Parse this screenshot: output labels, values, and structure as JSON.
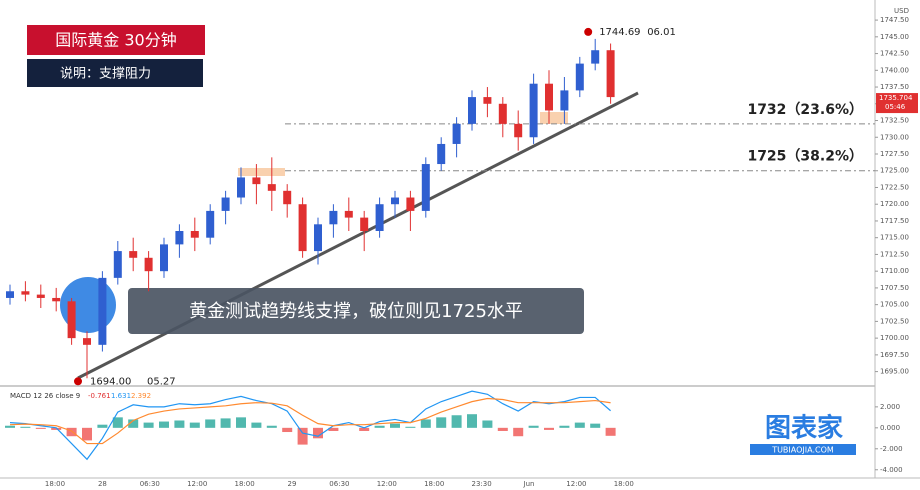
{
  "chart_data": {
    "type": "candlestick",
    "title": "国际黄金 30分钟",
    "subtitle": "说明：支撑阻力",
    "annotation": "黄金测试趋势线支撑，破位则见1725水平",
    "currency": "USD",
    "up_color": "#2f5fd0",
    "down_color": "#e03030",
    "open": [
      1706,
      1707,
      1706.5,
      1706,
      1705.5,
      1700,
      1699,
      1709,
      1713,
      1712,
      1710,
      1714,
      1716,
      1715,
      1719,
      1721,
      1724,
      1723,
      1722,
      1720,
      1713,
      1717,
      1719,
      1718,
      1716,
      1720,
      1721,
      1719,
      1726,
      1729,
      1732,
      1736,
      1735,
      1732,
      1730,
      1738,
      1734,
      1737,
      1741,
      1743
    ],
    "high": [
      1708,
      1708.5,
      1708,
      1707.5,
      1706,
      1701,
      1710,
      1714.5,
      1715,
      1713,
      1715,
      1717,
      1718,
      1720,
      1722,
      1725.5,
      1726,
      1727,
      1723,
      1721,
      1718,
      1720,
      1721,
      1719,
      1721,
      1722,
      1722,
      1727,
      1730,
      1733,
      1737,
      1737.5,
      1736,
      1734,
      1739.5,
      1740,
      1739,
      1742,
      1744.69,
      1744
    ],
    "low": [
      1705,
      1705.5,
      1704.5,
      1704,
      1699,
      1694,
      1698,
      1708,
      1710,
      1707,
      1709,
      1712,
      1713,
      1714,
      1717,
      1720,
      1720,
      1719,
      1718,
      1712,
      1711,
      1715,
      1716,
      1713,
      1715,
      1718,
      1716,
      1718,
      1725,
      1727,
      1731,
      1733,
      1730,
      1728,
      1729,
      1732,
      1732,
      1736,
      1740,
      1735
    ],
    "close": [
      1707,
      1706.5,
      1706,
      1705.5,
      1700,
      1699,
      1709,
      1713,
      1712,
      1710,
      1714,
      1716,
      1715,
      1719,
      1721,
      1724,
      1723,
      1722,
      1720,
      1713,
      1717,
      1719,
      1718,
      1716,
      1720,
      1721,
      1719,
      1726,
      1729,
      1732,
      1736,
      1735,
      1732,
      1730,
      1738,
      1734,
      1737,
      1741,
      1743,
      1736
    ],
    "time_labels": [
      "18:00",
      "28",
      "06:30",
      "12:00",
      "18:00",
      "29",
      "06:30",
      "12:00",
      "18:00",
      "23:30",
      "Jun",
      "12:00",
      "18:00"
    ],
    "ylim": [
      1693,
      1750.5
    ],
    "yticks": [
      {
        "value": 1695,
        "label": "1695.00"
      },
      {
        "value": 1697.5,
        "label": "1697.50"
      },
      {
        "value": 1700,
        "label": "1700.00"
      },
      {
        "value": 1702.5,
        "label": "1702.50"
      },
      {
        "value": 1705,
        "label": "1705.00"
      },
      {
        "value": 1707.5,
        "label": "1707.50"
      },
      {
        "value": 1710,
        "label": "1710.00"
      },
      {
        "value": 1712.5,
        "label": "1712.50"
      },
      {
        "value": 1715,
        "label": "1715.00"
      },
      {
        "value": 1717.5,
        "label": "1717.50"
      },
      {
        "value": 1720,
        "label": "1720.00"
      },
      {
        "value": 1722.5,
        "label": "1722.50"
      },
      {
        "value": 1725,
        "label": "1725.00"
      },
      {
        "value": 1727.5,
        "label": "1727.50"
      },
      {
        "value": 1730,
        "label": "1730.00"
      },
      {
        "value": 1732.5,
        "label": "1732.50"
      },
      {
        "value": 1735,
        "label": "1735.00"
      },
      {
        "value": 1737.5,
        "label": "1737.50"
      },
      {
        "value": 1740,
        "label": "1740.00"
      },
      {
        "value": 1742.5,
        "label": "1742.50"
      },
      {
        "value": 1745,
        "label": "1745.00"
      },
      {
        "value": 1747.5,
        "label": "1747.50"
      }
    ],
    "levels": [
      {
        "value": 1732,
        "label": "1732（23.6%）"
      },
      {
        "value": 1725,
        "label": "1725（38.2%）"
      }
    ],
    "last_price": {
      "value": 1735.704,
      "label": "1735.704",
      "time": "05:46"
    },
    "high_mark": {
      "value": 1744.69,
      "label": "1744.69",
      "date": "06.01"
    },
    "low_mark": {
      "value": 1694.0,
      "label": "1694.00",
      "date": "05.27"
    },
    "macd": {
      "title": "MACD 12 26 close 9",
      "hist_label": "-0.761",
      "macd_label": "1.631",
      "signal_label": "2.392",
      "hist": [
        0.2,
        0.1,
        -0.1,
        -0.2,
        -0.8,
        -1.2,
        0.3,
        1.0,
        0.8,
        0.5,
        0.6,
        0.7,
        0.5,
        0.8,
        0.9,
        1.0,
        0.5,
        0.2,
        -0.4,
        -1.6,
        -1.0,
        -0.3,
        0,
        -0.3,
        0.2,
        0.4,
        0.1,
        0.8,
        1.0,
        1.2,
        1.3,
        0.7,
        -0.3,
        -0.8,
        0.2,
        -0.2,
        0.2,
        0.5,
        0.4,
        -0.761
      ],
      "macd": [
        0.5,
        0.4,
        0.2,
        0,
        -1.5,
        -3,
        -1,
        1.5,
        2.2,
        2,
        2,
        2.3,
        2.2,
        2.3,
        2.7,
        3,
        2.6,
        2.3,
        1.6,
        -0.5,
        -0.8,
        0.2,
        0.5,
        0,
        0.6,
        0.8,
        0.5,
        1.8,
        2.5,
        3,
        3.5,
        3.2,
        2.3,
        1.6,
        2.5,
        2.3,
        2.5,
        2.9,
        2.9,
        1.631
      ],
      "signal": [
        0.3,
        0.35,
        0.3,
        0.2,
        -0.3,
        -1.5,
        -1.5,
        -0.5,
        0.7,
        1.3,
        1.6,
        1.8,
        1.9,
        2,
        2.1,
        2.3,
        2.4,
        2.35,
        2.1,
        1.2,
        0.4,
        0.2,
        0.3,
        0.3,
        0.4,
        0.5,
        0.5,
        0.9,
        1.5,
        2,
        2.5,
        2.8,
        2.7,
        2.4,
        2.4,
        2.4,
        2.4,
        2.5,
        2.6,
        2.392
      ],
      "ylim": [
        -4.5,
        3.8
      ],
      "yticks": [
        {
          "value": 2,
          "label": "2.000"
        },
        {
          "value": 0,
          "label": "0.000"
        },
        {
          "value": -2,
          "label": "-2.000"
        },
        {
          "value": -4,
          "label": "-4.000"
        }
      ]
    },
    "watermark": "图表家",
    "watermark_sub": "TUBIAOJIA.COM"
  }
}
